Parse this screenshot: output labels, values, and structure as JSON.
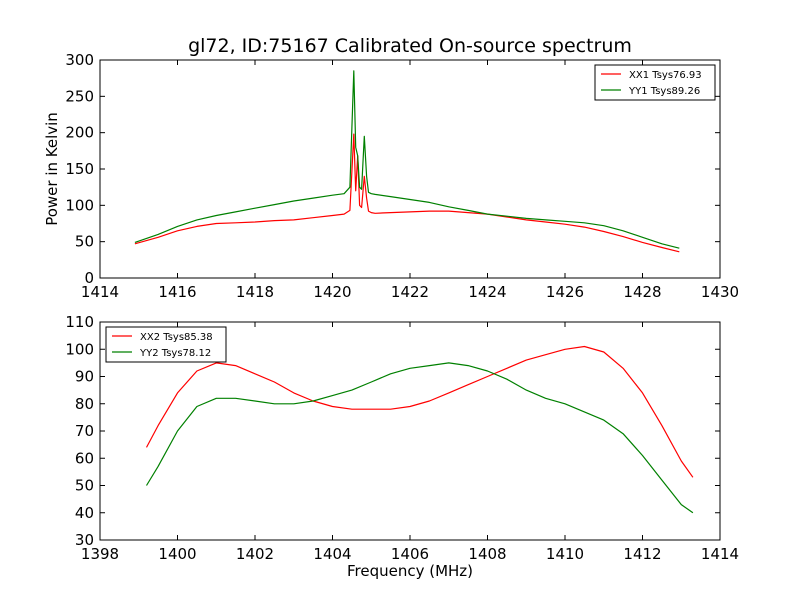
{
  "figure": {
    "title": "gl72, ID:75167 Calibrated On-source spectrum",
    "background": "#ffffff"
  },
  "chart_data": [
    {
      "type": "line",
      "ylabel": "Power in Kelvin",
      "xlabel": "",
      "xlim": [
        1414,
        1430
      ],
      "ylim": [
        0,
        300
      ],
      "xticks": [
        1414,
        1416,
        1418,
        1420,
        1422,
        1424,
        1426,
        1428,
        1430
      ],
      "yticks": [
        0,
        50,
        100,
        150,
        200,
        250,
        300
      ],
      "legend_position": "top-right",
      "series": [
        {
          "name": "XX1 Tsys76.93",
          "color": "#ff0000",
          "x": [
            1414.9,
            1415.5,
            1416.0,
            1416.5,
            1417.0,
            1417.5,
            1418.0,
            1418.5,
            1419.0,
            1419.5,
            1420.0,
            1420.3,
            1420.45,
            1420.55,
            1420.6,
            1420.65,
            1420.7,
            1420.75,
            1420.82,
            1420.88,
            1420.93,
            1421.0,
            1421.1,
            1421.5,
            1422.0,
            1422.5,
            1423.0,
            1423.5,
            1424.0,
            1424.5,
            1425.0,
            1425.5,
            1426.0,
            1426.5,
            1427.0,
            1427.5,
            1428.0,
            1428.5,
            1428.95
          ],
          "y": [
            47,
            56,
            65,
            71,
            75,
            76,
            77,
            79,
            80,
            83,
            86,
            88,
            93,
            198,
            120,
            168,
            100,
            97,
            140,
            110,
            92,
            90,
            89,
            90,
            91,
            92,
            92,
            90,
            88,
            84,
            80,
            77,
            74,
            70,
            64,
            57,
            49,
            42,
            36
          ]
        },
        {
          "name": "YY1 Tsys89.26",
          "color": "#008000",
          "x": [
            1414.9,
            1415.5,
            1416.0,
            1416.5,
            1417.0,
            1417.5,
            1418.0,
            1418.5,
            1419.0,
            1419.5,
            1420.0,
            1420.3,
            1420.45,
            1420.55,
            1420.6,
            1420.65,
            1420.7,
            1420.75,
            1420.82,
            1420.88,
            1420.93,
            1421.0,
            1421.1,
            1421.5,
            1422.0,
            1422.5,
            1423.0,
            1423.5,
            1424.0,
            1424.5,
            1425.0,
            1425.5,
            1426.0,
            1426.5,
            1427.0,
            1427.5,
            1428.0,
            1428.5,
            1428.95
          ],
          "y": [
            49,
            60,
            71,
            80,
            86,
            91,
            96,
            101,
            106,
            110,
            114,
            116,
            125,
            285,
            180,
            168,
            125,
            122,
            195,
            140,
            118,
            116,
            115,
            112,
            108,
            104,
            98,
            93,
            88,
            85,
            82,
            80,
            78,
            76,
            72,
            65,
            56,
            47,
            41
          ]
        }
      ]
    },
    {
      "type": "line",
      "ylabel": "",
      "xlabel": "Frequency (MHz)",
      "xlim": [
        1398,
        1414
      ],
      "ylim": [
        30,
        110
      ],
      "xticks": [
        1398,
        1400,
        1402,
        1404,
        1406,
        1408,
        1410,
        1412,
        1414
      ],
      "yticks": [
        30,
        40,
        50,
        60,
        70,
        80,
        90,
        100,
        110
      ],
      "legend_position": "top-left",
      "series": [
        {
          "name": "XX2 Tsys85.38",
          "color": "#ff0000",
          "x": [
            1399.2,
            1399.5,
            1400.0,
            1400.5,
            1401.0,
            1401.5,
            1402.0,
            1402.5,
            1403.0,
            1403.5,
            1404.0,
            1404.5,
            1405.0,
            1405.5,
            1406.0,
            1406.5,
            1407.0,
            1407.5,
            1408.0,
            1408.5,
            1409.0,
            1409.5,
            1410.0,
            1410.5,
            1411.0,
            1411.5,
            1412.0,
            1412.5,
            1413.0,
            1413.3
          ],
          "y": [
            64,
            72,
            84,
            92,
            95,
            94,
            91,
            88,
            84,
            81,
            79,
            78,
            78,
            78,
            79,
            81,
            84,
            87,
            90,
            93,
            96,
            98,
            100,
            101,
            99,
            93,
            84,
            72,
            59,
            53
          ]
        },
        {
          "name": "YY2 Tsys78.12",
          "color": "#008000",
          "x": [
            1399.2,
            1399.5,
            1400.0,
            1400.5,
            1401.0,
            1401.5,
            1402.0,
            1402.5,
            1403.0,
            1403.5,
            1404.0,
            1404.5,
            1405.0,
            1405.5,
            1406.0,
            1406.5,
            1407.0,
            1407.5,
            1408.0,
            1408.5,
            1409.0,
            1409.5,
            1410.0,
            1410.5,
            1411.0,
            1411.5,
            1412.0,
            1412.5,
            1413.0,
            1413.3
          ],
          "y": [
            50,
            57,
            70,
            79,
            82,
            82,
            81,
            80,
            80,
            81,
            83,
            85,
            88,
            91,
            93,
            94,
            95,
            94,
            92,
            89,
            85,
            82,
            80,
            77,
            74,
            69,
            61,
            52,
            43,
            40
          ]
        }
      ]
    }
  ]
}
